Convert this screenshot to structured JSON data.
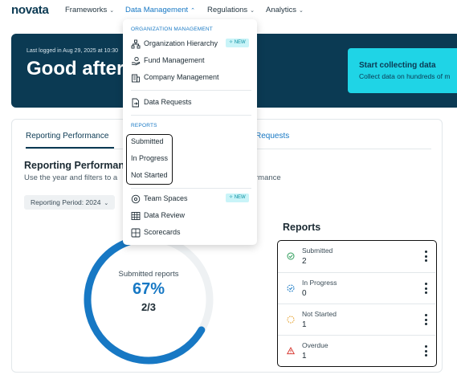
{
  "brand": {
    "logo": "novata"
  },
  "nav": {
    "frameworks": "Frameworks",
    "data_management": "Data Management",
    "regulations": "Regulations",
    "analytics": "Analytics"
  },
  "banner": {
    "last_logged": "Last logged in Aug 29, 2025 at 10:30",
    "greeting": "Good aftern",
    "promo_title": "Start collecting data",
    "promo_sub": "Collect data on hundreds of m"
  },
  "tabs": {
    "reporting_performance": "Reporting Performance",
    "requests": "Requests"
  },
  "section": {
    "title": "Reporting Performanc",
    "subtitle_left": "Use the year and filters to a",
    "subtitle_right": "rmance",
    "period": "Reporting Period: 2024"
  },
  "donut": {
    "label": "Submitted reports",
    "percent": "67%",
    "ratio": "2/3",
    "progress_fraction": 0.6667,
    "color": "#1778c4",
    "track_color": "#eef1f3"
  },
  "reports": {
    "title": "Reports",
    "rows": [
      {
        "label": "Submitted",
        "count": "2",
        "icon": "check-circle-icon",
        "color": "#2e9e5b",
        "bg": "#e6f6ec"
      },
      {
        "label": "In Progress",
        "count": "0",
        "icon": "progress-circle-icon",
        "color": "#1778c4",
        "bg": "#e7f1fa"
      },
      {
        "label": "Not Started",
        "count": "1",
        "icon": "dashed-circle-icon",
        "color": "#e39a1f",
        "bg": "#fdf3e3"
      },
      {
        "label": "Overdue",
        "count": "1",
        "icon": "warning-triangle-icon",
        "color": "#d9413a",
        "bg": "#fbe9e8"
      }
    ]
  },
  "menu": {
    "org_header": "ORGANIZATION MANAGEMENT",
    "org_hierarchy": "Organization Hierarchy",
    "new_badge": "NEW",
    "fund_management": "Fund Management",
    "company_management": "Company Management",
    "data_requests": "Data Requests",
    "reports_header": "REPORTS",
    "submitted": "Submitted",
    "in_progress": "In Progress",
    "not_started": "Not Started",
    "team_spaces": "Team Spaces",
    "data_review": "Data Review",
    "scorecards": "Scorecards"
  }
}
